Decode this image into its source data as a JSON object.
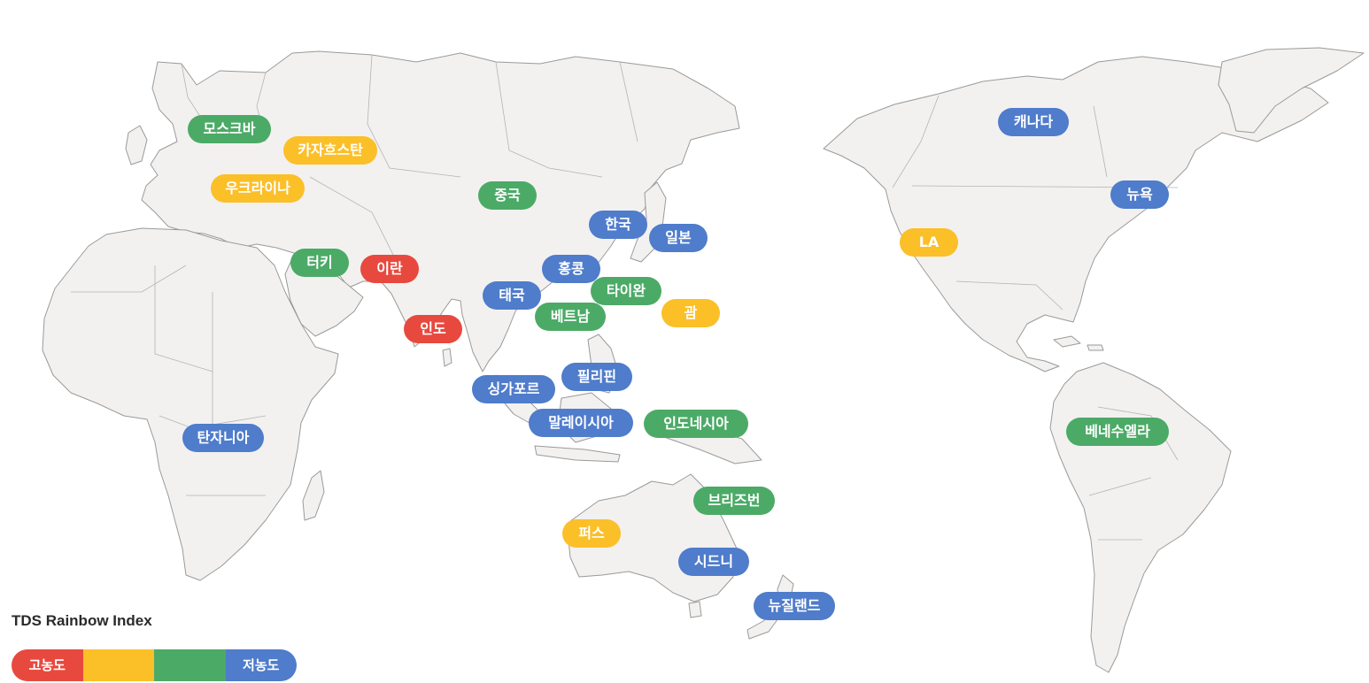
{
  "colors": {
    "high": "#e8493e",
    "upper_mid": "#fbbf28",
    "lower_mid": "#4caa67",
    "low": "#4f7ccb"
  },
  "legend": {
    "title": "TDS Rainbow Index",
    "high_label": "고농도",
    "low_label": "저농도"
  },
  "markers": [
    {
      "id": "moscow",
      "label": "모스크바",
      "level": "lower_mid"
    },
    {
      "id": "kazakhstan",
      "label": "카자흐스탄",
      "level": "upper_mid"
    },
    {
      "id": "ukraine",
      "label": "우크라이나",
      "level": "upper_mid"
    },
    {
      "id": "china",
      "label": "중국",
      "level": "lower_mid"
    },
    {
      "id": "korea",
      "label": "한국",
      "level": "low"
    },
    {
      "id": "japan",
      "label": "일본",
      "level": "low"
    },
    {
      "id": "turkey",
      "label": "터키",
      "level": "lower_mid"
    },
    {
      "id": "iran",
      "label": "이란",
      "level": "high"
    },
    {
      "id": "hongkong",
      "label": "홍콩",
      "level": "low"
    },
    {
      "id": "thailand",
      "label": "태국",
      "level": "low"
    },
    {
      "id": "taiwan",
      "label": "타이완",
      "level": "lower_mid"
    },
    {
      "id": "vietnam",
      "label": "베트남",
      "level": "lower_mid"
    },
    {
      "id": "guam",
      "label": "괌",
      "level": "upper_mid"
    },
    {
      "id": "india",
      "label": "인도",
      "level": "high"
    },
    {
      "id": "philippines",
      "label": "필리핀",
      "level": "low"
    },
    {
      "id": "singapore",
      "label": "싱가포르",
      "level": "low"
    },
    {
      "id": "malaysia",
      "label": "말레이시아",
      "level": "low"
    },
    {
      "id": "indonesia",
      "label": "인도네시아",
      "level": "lower_mid"
    },
    {
      "id": "tanzania",
      "label": "탄자니아",
      "level": "low"
    },
    {
      "id": "brisbane",
      "label": "브리즈번",
      "level": "lower_mid"
    },
    {
      "id": "perth",
      "label": "퍼스",
      "level": "upper_mid"
    },
    {
      "id": "sydney",
      "label": "시드니",
      "level": "low"
    },
    {
      "id": "newzealand",
      "label": "뉴질랜드",
      "level": "low"
    },
    {
      "id": "canada",
      "label": "캐나다",
      "level": "low"
    },
    {
      "id": "newyork",
      "label": "뉴욕",
      "level": "low"
    },
    {
      "id": "la",
      "label": "LA",
      "level": "upper_mid"
    },
    {
      "id": "venezuela",
      "label": "베네수엘라",
      "level": "lower_mid"
    }
  ]
}
